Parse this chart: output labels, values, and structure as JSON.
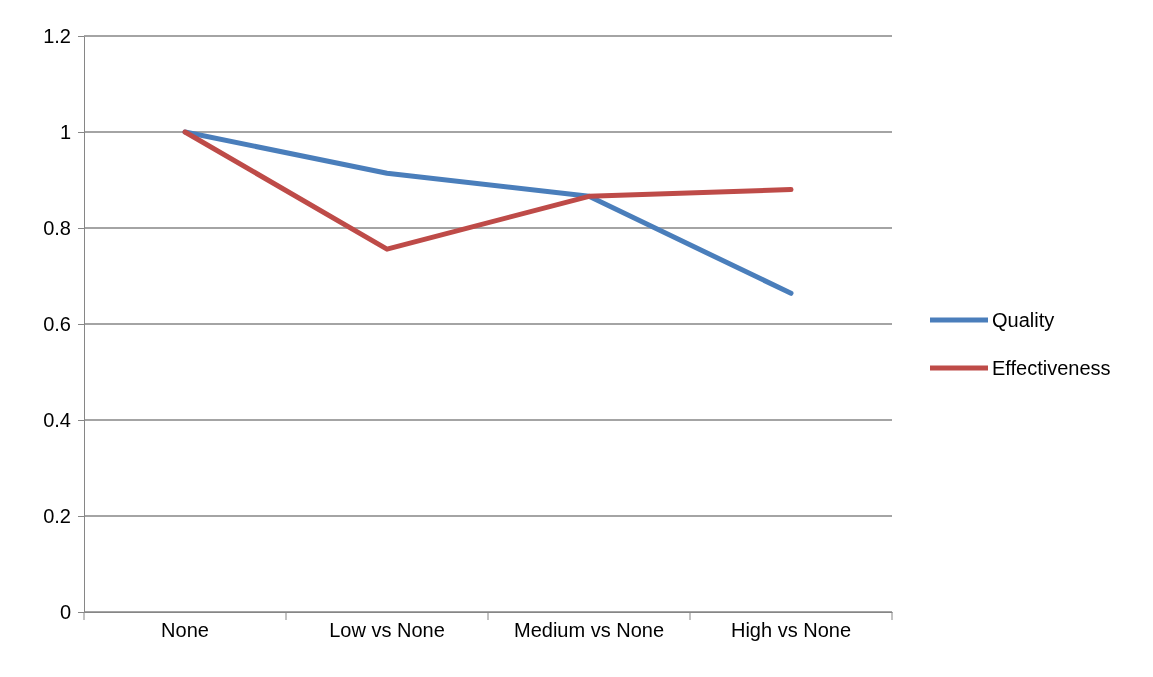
{
  "chart_data": {
    "type": "line",
    "categories": [
      "None",
      "Low vs None",
      "Medium vs None",
      "High vs None"
    ],
    "series": [
      {
        "name": "Quality",
        "color": "#4a7ebb",
        "values": [
          1,
          0.914,
          0.866,
          0.664
        ]
      },
      {
        "name": "Effectiveness",
        "color": "#be4b48",
        "values": [
          1,
          0.756,
          0.866,
          0.88
        ]
      }
    ],
    "ylim": [
      0,
      1.2
    ],
    "yticks": [
      0,
      0.2,
      0.4,
      0.6,
      0.8,
      1,
      1.2
    ],
    "grid": "y",
    "legend": "right",
    "marker": "none",
    "line_style": "solid"
  }
}
